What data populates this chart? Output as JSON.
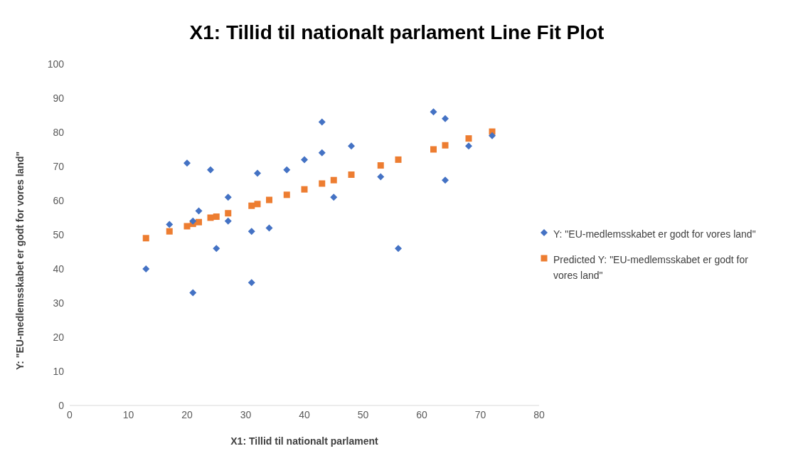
{
  "chart_data": {
    "type": "scatter",
    "title": "X1: Tillid til nationalt parlament Line Fit  Plot",
    "xlabel": "X1: Tillid til nationalt parlament",
    "ylabel": "Y: \"EU-medlemsskabet er godt for vores land\"",
    "xlim": [
      0,
      80
    ],
    "xticks": [
      0,
      10,
      20,
      30,
      40,
      50,
      60,
      70,
      80
    ],
    "ylim": [
      0,
      100
    ],
    "yticks": [
      0,
      10,
      20,
      30,
      40,
      50,
      60,
      70,
      80,
      90,
      100
    ],
    "grid": false,
    "legend": "right",
    "series": [
      {
        "name": "Y: \"EU-medlemsskabet er godt for vores land\"",
        "color": "#4472c4",
        "marker": "diamond",
        "x": [
          13,
          17,
          20,
          21,
          21,
          22,
          24,
          25,
          27,
          27,
          31,
          31,
          32,
          34,
          37,
          40,
          43,
          43,
          45,
          48,
          53,
          56,
          62,
          64,
          64,
          68,
          72
        ],
        "values": [
          40,
          53,
          71,
          33,
          54,
          57,
          69,
          46,
          61,
          54,
          51,
          36,
          68,
          52,
          69,
          72,
          74,
          83,
          61,
          76,
          67,
          46,
          86,
          84,
          66,
          76,
          79
        ]
      },
      {
        "name": "Predicted Y: \"EU-medlemsskabet er godt for vores land\"",
        "color": "#ed7d31",
        "marker": "square",
        "x": [
          13,
          17,
          20,
          21,
          22,
          24,
          25,
          27,
          31,
          32,
          34,
          37,
          40,
          43,
          45,
          48,
          53,
          56,
          62,
          64,
          68,
          72
        ],
        "values": [
          49,
          51,
          52.5,
          53.2,
          53.7,
          55,
          55.3,
          56.3,
          58.5,
          59,
          60.2,
          61.7,
          63.3,
          65,
          66,
          67.6,
          70.3,
          72,
          75,
          76.2,
          78.2,
          80.2
        ]
      }
    ]
  }
}
